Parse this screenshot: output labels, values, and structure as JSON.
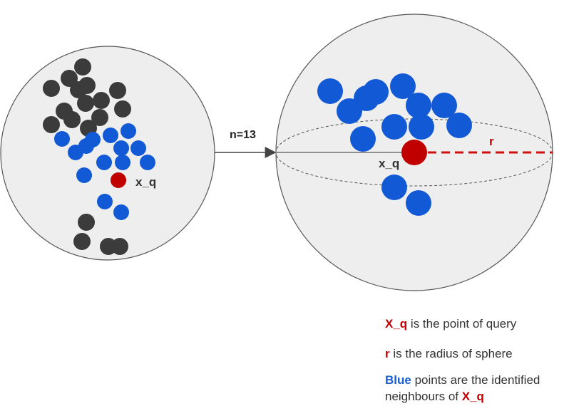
{
  "colors": {
    "sphere_fill": "#eeeeee",
    "sphere_stroke": "#555555",
    "dark_point": "#3b3b3b",
    "neighbour_point": "#1259d6",
    "query_point": "#c00000",
    "radius_line": "#d01010",
    "arrow": "#444444"
  },
  "left_panel": {
    "query_label": "x_q"
  },
  "arrow": {
    "label": "n=13"
  },
  "right_panel": {
    "query_label": "x_q",
    "radius_label": "r"
  },
  "legend": {
    "line1": {
      "key": "X_q",
      "text": " is the point of query"
    },
    "line2": {
      "key": "r",
      "text": " is the radius of  sphere"
    },
    "line3": {
      "key": "Blue",
      "text_a": " points are the  identified",
      "text_b": "neighbours of ",
      "key2": "X_q"
    }
  }
}
